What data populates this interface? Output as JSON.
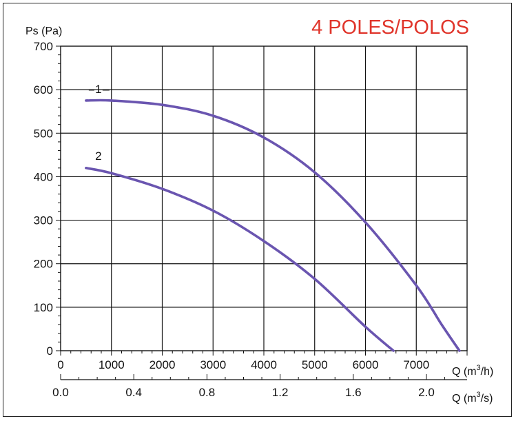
{
  "chart_data": {
    "type": "line",
    "title": "4 POLES/POLOS",
    "title_color": "#e0352b",
    "ylabel": "Ps (Pa)",
    "xlabel": "Q (m³/h)",
    "xlabel2": "Q (m³/s)",
    "ylim": [
      0,
      700
    ],
    "xlim": [
      0,
      8000
    ],
    "grid": true,
    "series_color": "#6a55b0",
    "y_ticks": [
      "0",
      "100",
      "200",
      "300",
      "400",
      "500",
      "600",
      "700"
    ],
    "x_ticks": [
      "0",
      "1000",
      "2000",
      "3000",
      "4000",
      "5000",
      "6000",
      "7000"
    ],
    "x2_ticks": [
      "0.0",
      "0.4",
      "0.8",
      "1.2",
      "1.6",
      "2.0"
    ],
    "series": [
      {
        "label": "1",
        "x": [
          500,
          1000,
          2000,
          3000,
          4000,
          5000,
          6000,
          7000,
          7500,
          7850
        ],
        "y": [
          575,
          575,
          565,
          540,
          490,
          410,
          295,
          150,
          60,
          0
        ]
      },
      {
        "label": "2",
        "x": [
          500,
          1000,
          2000,
          3000,
          4000,
          5000,
          6000,
          6550
        ],
        "y": [
          420,
          408,
          372,
          322,
          252,
          165,
          55,
          0
        ]
      }
    ]
  }
}
